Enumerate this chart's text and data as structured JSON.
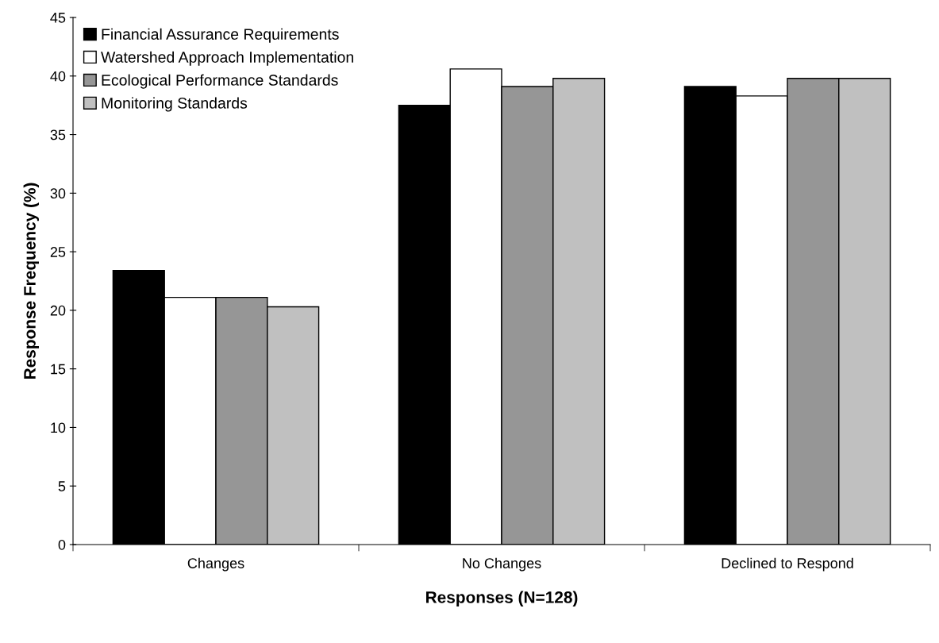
{
  "chart_data": {
    "type": "bar",
    "xlabel": "Responses (N=128)",
    "ylabel": "Response Frequency (%)",
    "categories": [
      "Changes",
      "No Changes",
      "Declined to Respond"
    ],
    "series": [
      {
        "name": "Financial Assurance Requirements",
        "color": "#000000",
        "values": [
          23.4,
          37.5,
          39.1
        ]
      },
      {
        "name": "Watershed Approach Implementation",
        "color": "#ffffff",
        "values": [
          21.1,
          40.6,
          38.3
        ]
      },
      {
        "name": "Ecological Performance Standards",
        "color": "#969696",
        "values": [
          21.1,
          39.1,
          39.8
        ]
      },
      {
        "name": "Monitoring Standards",
        "color": "#c0c0c0",
        "values": [
          20.3,
          39.8,
          39.8
        ]
      }
    ],
    "ylim": [
      0,
      45
    ],
    "yticks": [
      0,
      5,
      10,
      15,
      20,
      25,
      30,
      35,
      40,
      45
    ],
    "grid": false,
    "legend": "top left"
  }
}
